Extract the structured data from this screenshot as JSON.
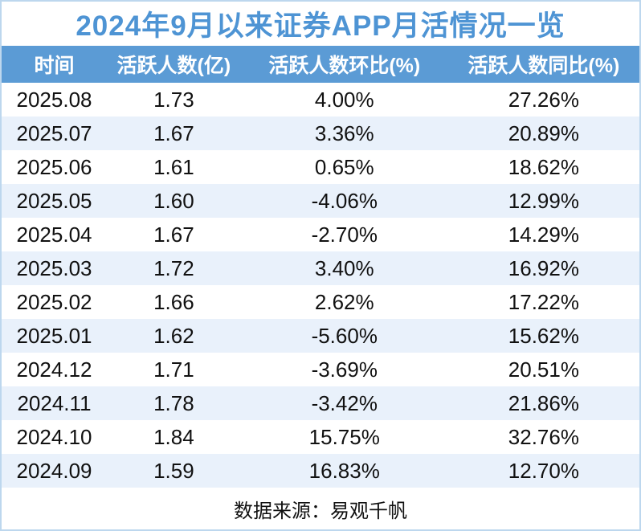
{
  "title": "2024年9月以来证券APP月活情况一览",
  "table": {
    "headers": [
      "时间",
      "活跃人数(亿)",
      "活跃人数环比(%)",
      "活跃人数同比(%)"
    ],
    "rows": [
      {
        "date": "2025.08",
        "mau": "1.73",
        "mom": "4.00%",
        "yoy": "27.26%"
      },
      {
        "date": "2025.07",
        "mau": "1.67",
        "mom": "3.36%",
        "yoy": "20.89%"
      },
      {
        "date": "2025.06",
        "mau": "1.61",
        "mom": "0.65%",
        "yoy": "18.62%"
      },
      {
        "date": "2025.05",
        "mau": "1.60",
        "mom": "-4.06%",
        "yoy": "12.99%"
      },
      {
        "date": "2025.04",
        "mau": "1.67",
        "mom": "-2.70%",
        "yoy": "14.29%"
      },
      {
        "date": "2025.03",
        "mau": "1.72",
        "mom": "3.40%",
        "yoy": "16.92%"
      },
      {
        "date": "2025.02",
        "mau": "1.66",
        "mom": "2.62%",
        "yoy": "17.22%"
      },
      {
        "date": "2025.01",
        "mau": "1.62",
        "mom": "-5.60%",
        "yoy": "15.62%"
      },
      {
        "date": "2024.12",
        "mau": "1.71",
        "mom": "-3.69%",
        "yoy": "20.51%"
      },
      {
        "date": "2024.11",
        "mau": "1.78",
        "mom": "-3.42%",
        "yoy": "21.86%"
      },
      {
        "date": "2024.10",
        "mau": "1.84",
        "mom": "15.75%",
        "yoy": "32.76%"
      },
      {
        "date": "2024.09",
        "mau": "1.59",
        "mom": "16.83%",
        "yoy": "12.70%"
      }
    ]
  },
  "footer": {
    "source_label": "数据来源：易观千帆"
  },
  "colors": {
    "title_text": "#4E94D4",
    "header_bg": "#5B9BD5",
    "header_text": "#FFFFFF",
    "row_bg": "#FFFFFF",
    "row_alt_bg": "#E9F1FB",
    "frame_border": "#BDD7EE",
    "body_text": "#111111"
  },
  "chart_data": {
    "type": "table",
    "title": "2024年9月以来证券APP月活情况一览",
    "columns": [
      "时间",
      "活跃人数(亿)",
      "活跃人数环比(%)",
      "活跃人数同比(%)"
    ],
    "rows": [
      [
        "2025.08",
        1.73,
        4.0,
        27.26
      ],
      [
        "2025.07",
        1.67,
        3.36,
        20.89
      ],
      [
        "2025.06",
        1.61,
        0.65,
        18.62
      ],
      [
        "2025.05",
        1.6,
        -4.06,
        12.99
      ],
      [
        "2025.04",
        1.67,
        -2.7,
        14.29
      ],
      [
        "2025.03",
        1.72,
        3.4,
        16.92
      ],
      [
        "2025.02",
        1.66,
        2.62,
        17.22
      ],
      [
        "2025.01",
        1.62,
        -5.6,
        15.62
      ],
      [
        "2024.12",
        1.71,
        -3.69,
        20.51
      ],
      [
        "2024.11",
        1.78,
        -3.42,
        21.86
      ],
      [
        "2024.10",
        1.84,
        15.75,
        32.76
      ],
      [
        "2024.09",
        1.59,
        16.83,
        12.7
      ]
    ],
    "units": {
      "活跃人数": "亿",
      "活跃人数环比": "%",
      "活跃人数同比": "%"
    },
    "source": "数据来源：易观千帆"
  }
}
